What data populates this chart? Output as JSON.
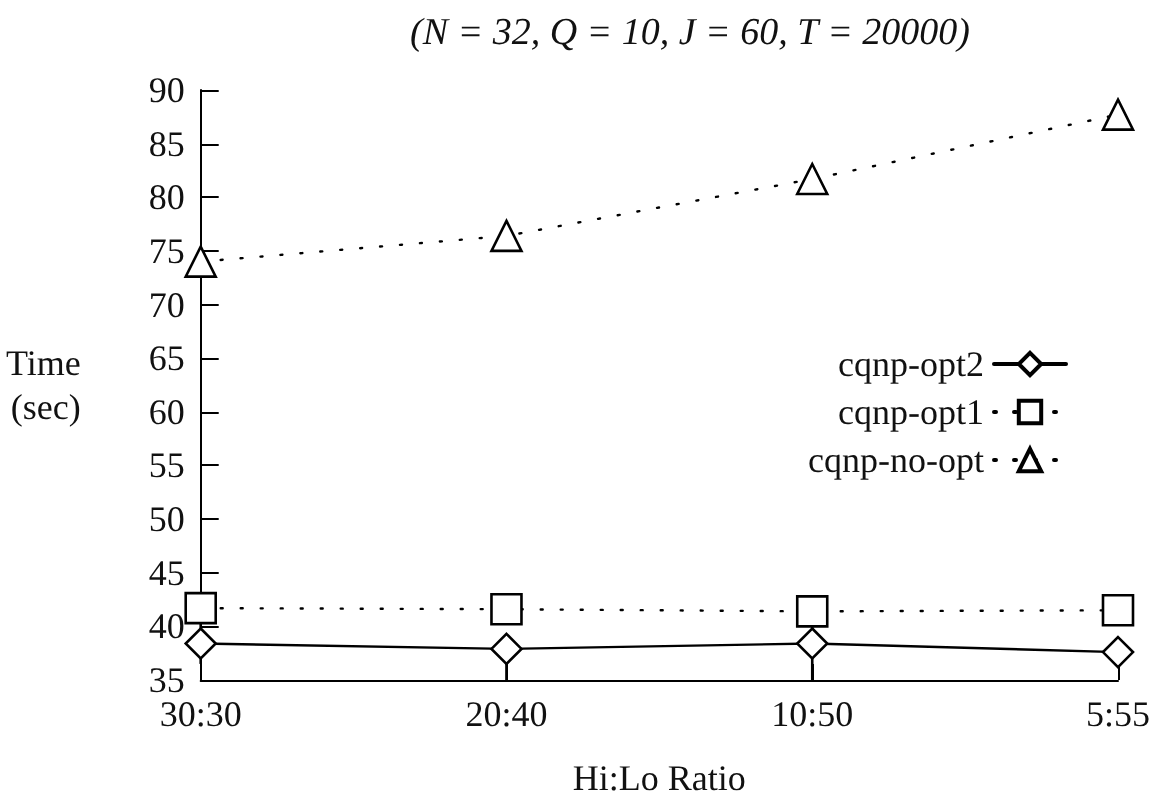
{
  "chart_data": {
    "type": "line",
    "title": "(N = 32, Q = 10, J = 60, T = 20000)",
    "xlabel": "Hi:Lo Ratio",
    "ylabel": "Time\n(sec)",
    "categories": [
      "30:30",
      "20:40",
      "10:50",
      "5:55"
    ],
    "ylim": [
      35,
      90
    ],
    "yticks": [
      35,
      40,
      45,
      50,
      55,
      60,
      65,
      70,
      75,
      80,
      85,
      90
    ],
    "grid": false,
    "legend": "right",
    "series": [
      {
        "name": "cqnp-opt2",
        "color": "#000000",
        "marker": "diamond",
        "line_style": "solid",
        "values": [
          38.4,
          37.9,
          38.4,
          37.6
        ],
        "errors": [
          [
            36.5,
            40.5
          ],
          [
            35,
            38.5
          ],
          [
            35,
            40
          ],
          null
        ]
      },
      {
        "name": "cqnp-opt1",
        "color": "#000000",
        "marker": "square",
        "line_style": "dotted",
        "values": [
          41.7,
          41.6,
          41.4,
          41.5
        ]
      },
      {
        "name": "cqnp-no-opt",
        "color": "#000000",
        "marker": "triangle",
        "line_style": "dotted",
        "values": [
          74,
          76.4,
          81.7,
          87.7
        ]
      }
    ]
  }
}
